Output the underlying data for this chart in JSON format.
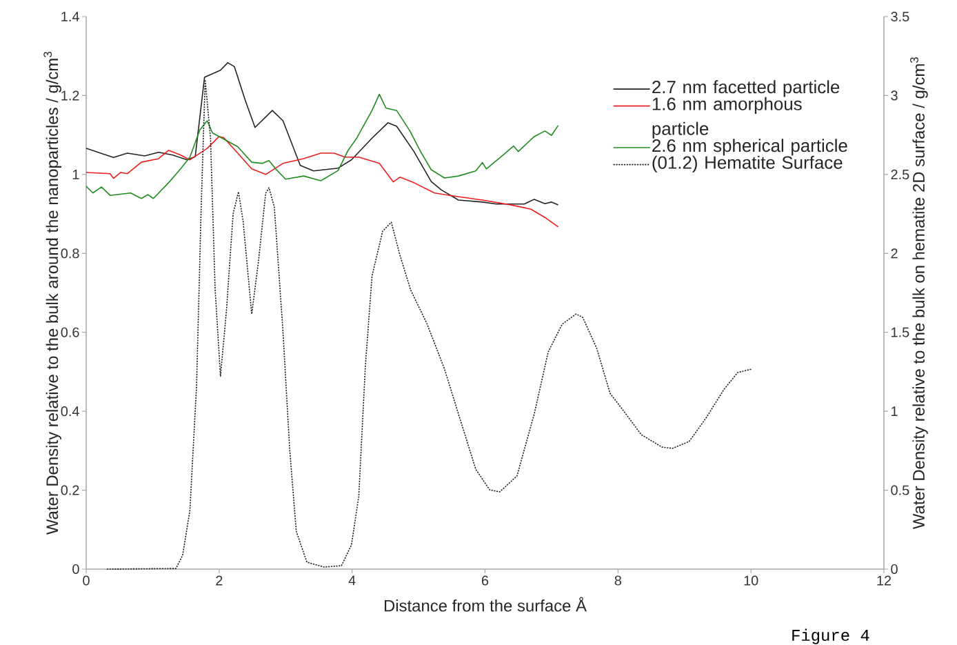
{
  "chart_data": {
    "type": "line",
    "xlabel": "Distance from the surface Å",
    "ylabel": "Water Density relative to the bulk around the nanoparticles / g/cm$^{3}$",
    "y2label": "Water Density relative to the bulk on hematite 2D surface / g/cm$^{3}$",
    "annotations": [
      "Figure 4"
    ],
    "xlim": [
      0,
      12
    ],
    "xticks": [
      0,
      2,
      4,
      6,
      8,
      10,
      12
    ],
    "ylim": [
      0,
      1.4
    ],
    "yticks": [
      0,
      0.2,
      0.4,
      0.6,
      0.8,
      1,
      1.2,
      1.4
    ],
    "y2lim": [
      0,
      3.5
    ],
    "y2ticks": [
      0,
      0.5,
      1,
      1.5,
      2,
      2.5,
      3,
      3.5
    ],
    "legend": "top right",
    "grid": false,
    "marker": "none",
    "series": [
      {
        "name": "2.7 nm facetted particle",
        "color": "#222222",
        "line_style": "solid",
        "x": [
          0,
          0.41,
          0.62,
          0.88,
          1.09,
          1.3,
          1.52,
          1.64,
          1.78,
          2.02,
          2.13,
          2.23,
          2.39,
          2.54,
          2.8,
          2.96,
          3.22,
          3.42,
          3.79,
          3.99,
          4.3,
          4.54,
          4.67,
          4.93,
          5.19,
          5.34,
          5.6,
          5.96,
          6.17,
          6.59,
          6.74,
          6.9,
          7.0,
          7.1
        ],
        "values": [
          1.066,
          1.043,
          1.054,
          1.047,
          1.056,
          1.049,
          1.037,
          1.045,
          1.246,
          1.264,
          1.283,
          1.273,
          1.189,
          1.119,
          1.162,
          1.136,
          1.023,
          1.009,
          1.016,
          1.037,
          1.092,
          1.131,
          1.122,
          1.058,
          0.982,
          0.961,
          0.935,
          0.93,
          0.925,
          0.925,
          0.937,
          0.926,
          0.93,
          0.923
        ]
      },
      {
        "name": "1.6 nm amorphous particle",
        "color": "#ee1c1c",
        "line_style": "solid",
        "x": [
          0,
          0.36,
          0.41,
          0.52,
          0.62,
          0.83,
          1.09,
          1.24,
          1.42,
          1.56,
          1.82,
          2.0,
          2.07,
          2.28,
          2.49,
          2.7,
          2.96,
          3.27,
          3.53,
          3.73,
          3.89,
          4.1,
          4.41,
          4.62,
          4.72,
          4.93,
          5.24,
          5.5,
          5.96,
          6.38,
          6.69,
          6.9,
          7.1
        ],
        "values": [
          1.005,
          1.002,
          0.99,
          1.005,
          1.002,
          1.031,
          1.04,
          1.061,
          1.049,
          1.037,
          1.066,
          1.096,
          1.093,
          1.054,
          1.014,
          1.0,
          1.028,
          1.04,
          1.054,
          1.054,
          1.044,
          1.044,
          1.028,
          0.981,
          0.993,
          0.979,
          0.953,
          0.946,
          0.935,
          0.923,
          0.912,
          0.891,
          0.867
        ]
      },
      {
        "name": "2.6 nm spherical particle",
        "color": "#1e8c1e",
        "line_style": "solid",
        "x": [
          0,
          0.1,
          0.23,
          0.36,
          0.67,
          0.83,
          0.93,
          1.01,
          1.24,
          1.42,
          1.56,
          1.71,
          1.82,
          1.9,
          2.13,
          2.28,
          2.49,
          2.65,
          2.75,
          2.85,
          3.0,
          3.27,
          3.53,
          3.79,
          3.94,
          4.07,
          4.3,
          4.41,
          4.51,
          4.67,
          4.87,
          5.03,
          5.19,
          5.39,
          5.6,
          5.86,
          5.96,
          6.02,
          6.27,
          6.43,
          6.5,
          6.74,
          6.9,
          7.0,
          7.1
        ],
        "values": [
          0.97,
          0.953,
          0.968,
          0.947,
          0.953,
          0.939,
          0.949,
          0.939,
          0.979,
          1.014,
          1.044,
          1.113,
          1.136,
          1.105,
          1.084,
          1.07,
          1.031,
          1.028,
          1.035,
          1.014,
          0.988,
          0.996,
          0.984,
          1.01,
          1.061,
          1.092,
          1.162,
          1.203,
          1.168,
          1.162,
          1.11,
          1.058,
          1.012,
          0.991,
          0.996,
          1.009,
          1.03,
          1.014,
          1.049,
          1.072,
          1.058,
          1.096,
          1.11,
          1.099,
          1.124
        ]
      },
      {
        "name": "(01.2) Hematite Surface",
        "color": "#222222",
        "line_style": "dashed",
        "axis": "y2",
        "x": [
          0.31,
          1.35,
          1.45,
          1.56,
          1.66,
          1.73,
          1.79,
          1.87,
          1.94,
          2.02,
          2.11,
          2.21,
          2.29,
          2.36,
          2.49,
          2.59,
          2.7,
          2.75,
          2.83,
          2.96,
          3.06,
          3.16,
          3.32,
          3.58,
          3.84,
          3.99,
          4.1,
          4.2,
          4.3,
          4.46,
          4.59,
          4.72,
          4.88,
          5.13,
          5.39,
          5.6,
          5.86,
          6.07,
          6.22,
          6.48,
          6.74,
          6.95,
          7.16,
          7.37,
          7.47,
          7.68,
          7.88,
          8.04,
          8.35,
          8.66,
          8.82,
          9.07,
          9.33,
          9.59,
          9.8,
          10.01
        ],
        "values": [
          0,
          0.004,
          0.087,
          0.371,
          1.158,
          2.294,
          3.1,
          2.73,
          1.77,
          1.223,
          1.638,
          2.25,
          2.39,
          2.206,
          1.616,
          1.944,
          2.381,
          2.416,
          2.294,
          1.507,
          0.765,
          0.24,
          0.044,
          0.013,
          0.022,
          0.153,
          0.459,
          1.289,
          1.857,
          2.141,
          2.197,
          1.988,
          1.769,
          1.551,
          1.267,
          0.983,
          0.633,
          0.502,
          0.489,
          0.59,
          0.983,
          1.376,
          1.551,
          1.616,
          1.594,
          1.398,
          1.114,
          1.027,
          0.852,
          0.773,
          0.765,
          0.808,
          0.961,
          1.136,
          1.245,
          1.267
        ]
      }
    ]
  }
}
